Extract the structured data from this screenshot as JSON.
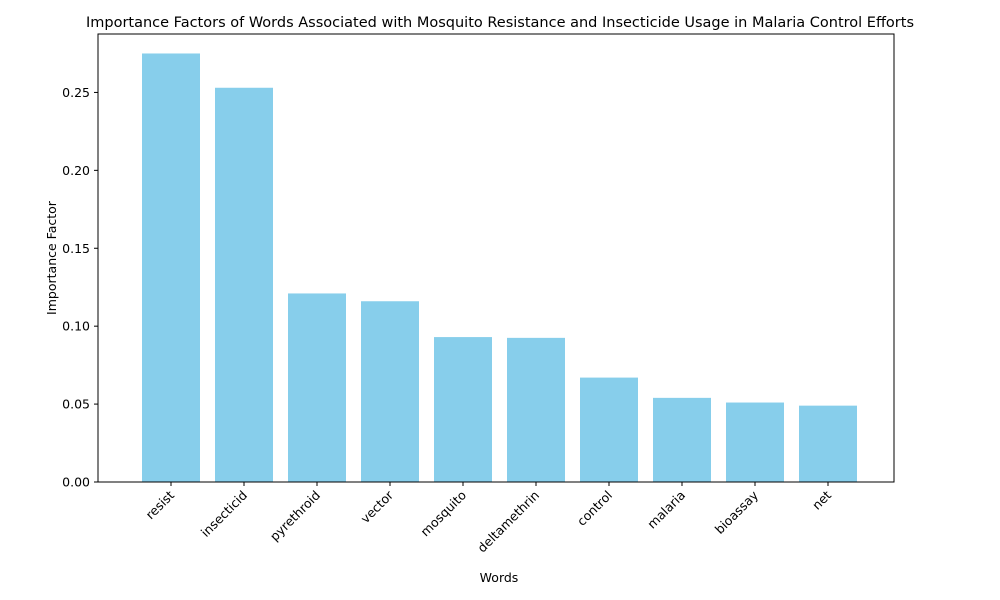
{
  "chart_data": {
    "type": "bar",
    "title": "Importance Factors of Words Associated with Mosquito Resistance and Insecticide Usage in Malaria Control Efforts",
    "xlabel": "Words",
    "ylabel": "Importance Factor",
    "categories": [
      "resist",
      "insecticid",
      "pyrethroid",
      "vector",
      "mosquito",
      "deltamethrin",
      "control",
      "malaria",
      "bioassay",
      "net"
    ],
    "values": [
      0.275,
      0.253,
      0.121,
      0.116,
      0.093,
      0.0925,
      0.067,
      0.054,
      0.051,
      0.049
    ],
    "ylim": [
      0,
      0.2875
    ],
    "yticks": [
      0.0,
      0.05,
      0.1,
      0.15,
      0.2,
      0.25
    ],
    "ytick_labels": [
      "0.00",
      "0.05",
      "0.10",
      "0.15",
      "0.20",
      "0.25"
    ],
    "bar_color": "#87ceeb",
    "grid": false,
    "legend": false
  }
}
